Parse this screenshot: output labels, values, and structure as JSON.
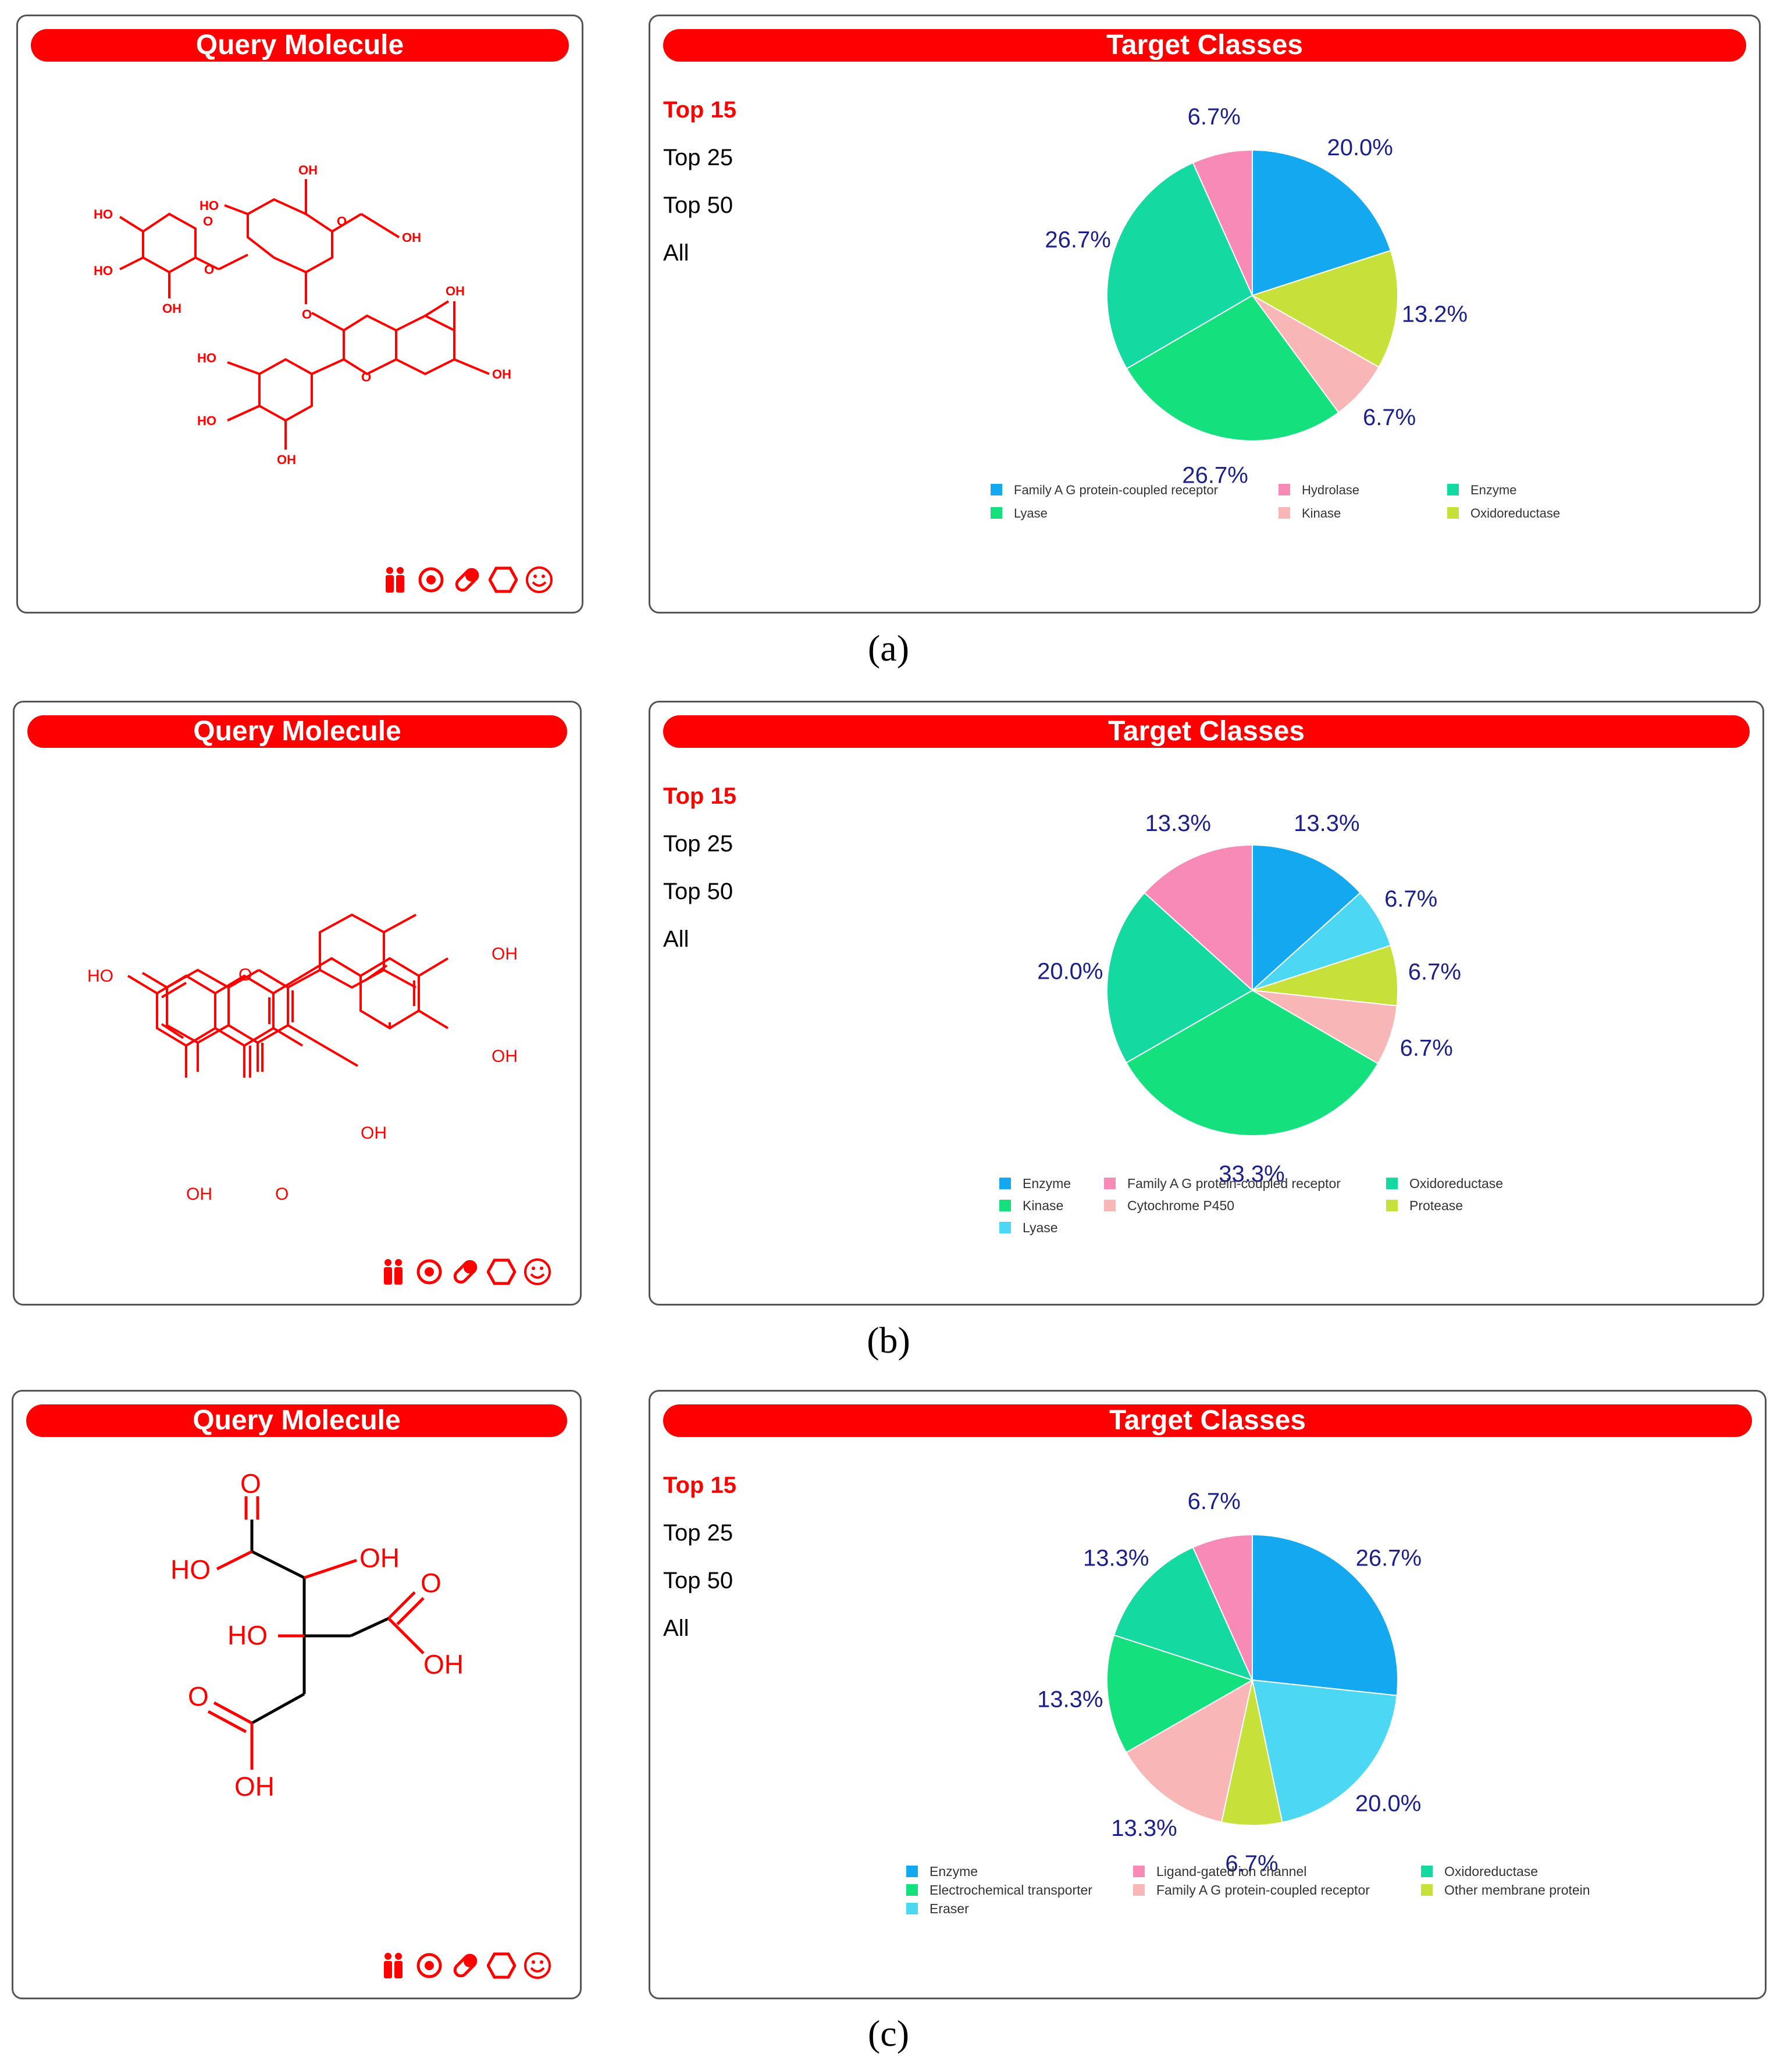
{
  "query_title": "Query Molecule",
  "target_title": "Target Classes",
  "menu": [
    "Top 15",
    "Top 25",
    "Top 50",
    "All"
  ],
  "captions": [
    "(a)",
    "(b)",
    "(c)"
  ],
  "icons": [
    "people-icon",
    "target-icon",
    "pill-icon",
    "hexagon-icon",
    "smiley-icon"
  ],
  "atom_labels": {
    "a": [
      "HO",
      "HO",
      "OH",
      "HO",
      "OH",
      "OH",
      "OH",
      "OH",
      "HO",
      "HO",
      "OH",
      "O",
      "O",
      "O",
      "O",
      "O"
    ],
    "b": [
      "HO",
      "O",
      "OH",
      "OH",
      "OH",
      "OH",
      "O"
    ],
    "c": [
      "O",
      "HO",
      "OH",
      "HO",
      "O",
      "OH",
      "O",
      "OH"
    ]
  },
  "colors": {
    "Enzyme": "#13a8ef",
    "Family A G protein-coupled receptor": "#f78ab7",
    "Hydrolase": "#f78ab7",
    "Oxidoreductase": "#14d9a1",
    "Kinase": "#14e17d",
    "Lyase": "#14e17d",
    "Cytochrome P450": "#f9b6b6",
    "Protease": "#c8e03a",
    "Eraser": "#4cd8f2",
    "Ligand-gated ion channel": "#f78ab7",
    "Electrochemical transporter": "#14e17d",
    "Other membrane protein": "#c8e03a"
  },
  "chart_data": [
    {
      "type": "pie",
      "title": "Target Classes",
      "slices": [
        {
          "label": "Family A G protein-coupled receptor",
          "value": 20.0,
          "text": "20.0%",
          "color": "#13a8ef"
        },
        {
          "label": "Oxidoreductase",
          "value": 13.2,
          "text": "13.2%",
          "color": "#c8e03a"
        },
        {
          "label": "Kinase",
          "value": 6.7,
          "text": "6.7%",
          "color": "#f9b6b6"
        },
        {
          "label": "Lyase",
          "value": 26.7,
          "text": "26.7%",
          "color": "#14e17d"
        },
        {
          "label": "Enzyme",
          "value": 26.7,
          "text": "26.7%",
          "color": "#14d9a1"
        },
        {
          "label": "Hydrolase",
          "value": 6.7,
          "text": "6.7%",
          "color": "#f78ab7"
        }
      ],
      "legend": [
        {
          "label": "Family A G protein-coupled receptor",
          "color": "#13a8ef"
        },
        {
          "label": "Hydrolase",
          "color": "#f78ab7"
        },
        {
          "label": "Enzyme",
          "color": "#14d9a1"
        },
        {
          "label": "Lyase",
          "color": "#14e17d"
        },
        {
          "label": "Kinase",
          "color": "#f9b6b6"
        },
        {
          "label": "Oxidoreductase",
          "color": "#c8e03a"
        }
      ]
    },
    {
      "type": "pie",
      "title": "Target Classes",
      "slices": [
        {
          "label": "Enzyme",
          "value": 13.3,
          "text": "13.3%",
          "color": "#13a8ef"
        },
        {
          "label": "Lyase",
          "value": 6.7,
          "text": "6.7%",
          "color": "#4cd8f2"
        },
        {
          "label": "Protease",
          "value": 6.7,
          "text": "6.7%",
          "color": "#c8e03a"
        },
        {
          "label": "Cytochrome P450",
          "value": 6.7,
          "text": "6.7%",
          "color": "#f9b6b6"
        },
        {
          "label": "Kinase",
          "value": 33.3,
          "text": "33.3%",
          "color": "#14e17d"
        },
        {
          "label": "Oxidoreductase",
          "value": 20.0,
          "text": "20.0%",
          "color": "#14d9a1"
        },
        {
          "label": "Family A G protein-coupled receptor",
          "value": 13.3,
          "text": "13.3%",
          "color": "#f78ab7"
        }
      ],
      "legend": [
        {
          "label": "Enzyme",
          "color": "#13a8ef"
        },
        {
          "label": "Family A G protein-coupled receptor",
          "color": "#f78ab7"
        },
        {
          "label": "Oxidoreductase",
          "color": "#14d9a1"
        },
        {
          "label": "Kinase",
          "color": "#14e17d"
        },
        {
          "label": "Cytochrome P450",
          "color": "#f9b6b6"
        },
        {
          "label": "Protease",
          "color": "#c8e03a"
        },
        {
          "label": "Lyase",
          "color": "#4cd8f2"
        }
      ]
    },
    {
      "type": "pie",
      "title": "Target Classes",
      "slices": [
        {
          "label": "Enzyme",
          "value": 26.7,
          "text": "26.7%",
          "color": "#13a8ef"
        },
        {
          "label": "Eraser",
          "value": 20.0,
          "text": "20.0%",
          "color": "#4cd8f2"
        },
        {
          "label": "Other membrane protein",
          "value": 6.7,
          "text": "6.7%",
          "color": "#c8e03a"
        },
        {
          "label": "Family A G protein-coupled receptor",
          "value": 13.3,
          "text": "13.3%",
          "color": "#f9b6b6"
        },
        {
          "label": "Electrochemical transporter",
          "value": 13.3,
          "text": "13.3%",
          "color": "#14e17d"
        },
        {
          "label": "Oxidoreductase",
          "value": 13.3,
          "text": "13.3%",
          "color": "#14d9a1"
        },
        {
          "label": "Ligand-gated ion channel",
          "value": 6.7,
          "text": "6.7%",
          "color": "#f78ab7"
        }
      ],
      "legend": [
        {
          "label": "Enzyme",
          "color": "#13a8ef"
        },
        {
          "label": "Ligand-gated ion channel",
          "color": "#f78ab7"
        },
        {
          "label": "Oxidoreductase",
          "color": "#14d9a1"
        },
        {
          "label": "Electrochemical transporter",
          "color": "#14e17d"
        },
        {
          "label": "Family A G protein-coupled receptor",
          "color": "#f9b6b6"
        },
        {
          "label": "Other membrane protein",
          "color": "#c8e03a"
        },
        {
          "label": "Eraser",
          "color": "#4cd8f2"
        }
      ]
    }
  ]
}
